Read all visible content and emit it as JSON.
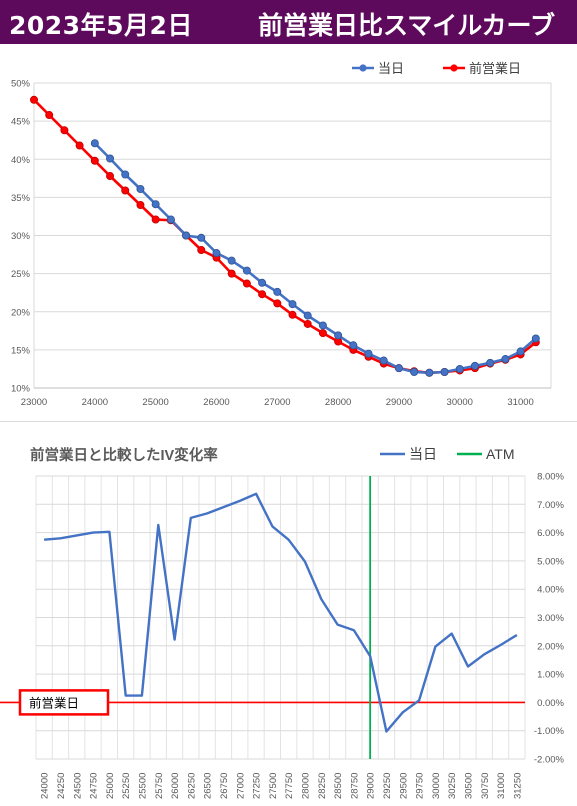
{
  "header": {
    "date": "2023年5月2日",
    "title": "前営業日比スマイルカーブ"
  },
  "colors": {
    "header_bg": "#5e0a5c",
    "today": "#4472c4",
    "prev": "#ff0000",
    "atm": "#00b050",
    "diff": "#4472c4",
    "baseline": "#ff0000"
  },
  "chart_data": [
    {
      "type": "line",
      "title": "",
      "legend": [
        "当日",
        "前営業日"
      ],
      "legend_position": "top-right",
      "xlim": [
        23000,
        31500
      ],
      "xticks": [
        "23000",
        "24000",
        "25000",
        "26000",
        "27000",
        "28000",
        "29000",
        "30000",
        "31000"
      ],
      "ylim": [
        0.1,
        0.5
      ],
      "yticks": [
        "10%",
        "15%",
        "20%",
        "25%",
        "30%",
        "35%",
        "40%",
        "45%",
        "50%"
      ],
      "grid": true,
      "series": [
        {
          "name": "当日",
          "x": [
            24000,
            24250,
            24500,
            24750,
            25000,
            25250,
            25500,
            25750,
            26000,
            26250,
            26500,
            26750,
            27000,
            27250,
            27500,
            27750,
            28000,
            28250,
            28500,
            28750,
            29000,
            29250,
            29500,
            29750,
            30000,
            30250,
            30500,
            30750,
            31000,
            31250
          ],
          "y": [
            0.421,
            0.401,
            0.38,
            0.361,
            0.341,
            0.321,
            0.3,
            0.297,
            0.277,
            0.267,
            0.254,
            0.238,
            0.226,
            0.21,
            0.195,
            0.182,
            0.169,
            0.156,
            0.145,
            0.136,
            0.126,
            0.121,
            0.12,
            0.121,
            0.125,
            0.129,
            0.133,
            0.138,
            0.148,
            0.165
          ]
        },
        {
          "name": "前営業日",
          "x": [
            23000,
            23250,
            23500,
            23750,
            24000,
            24250,
            24500,
            24750,
            25000,
            25250,
            25500,
            25750,
            26000,
            26250,
            26500,
            26750,
            27000,
            27250,
            27500,
            27750,
            28000,
            28250,
            28500,
            28750,
            29000,
            29250,
            29500,
            29750,
            30000,
            30250,
            30500,
            30750,
            31000,
            31250
          ],
          "y": [
            0.478,
            0.458,
            0.438,
            0.418,
            0.398,
            0.378,
            0.359,
            0.34,
            0.321,
            0.32,
            0.3,
            0.281,
            0.271,
            0.25,
            0.237,
            0.223,
            0.211,
            0.196,
            0.184,
            0.172,
            0.161,
            0.15,
            0.141,
            0.132,
            0.126,
            0.122,
            0.12,
            0.121,
            0.123,
            0.126,
            0.132,
            0.137,
            0.144,
            0.16
          ]
        }
      ]
    },
    {
      "type": "line",
      "title": "前営業日と比較したIV変化率",
      "legend": [
        "当日",
        "ATM"
      ],
      "legend_position": "top-right",
      "categories": [
        "24000",
        "24250",
        "24500",
        "24750",
        "25000",
        "25250",
        "25500",
        "25750",
        "26000",
        "26250",
        "26500",
        "26750",
        "27000",
        "27250",
        "27500",
        "27750",
        "28000",
        "28250",
        "28500",
        "28750",
        "29000",
        "29250",
        "29500",
        "29750",
        "30000",
        "30250",
        "30500",
        "30750",
        "31000",
        "31250"
      ],
      "ylim": [
        -0.02,
        0.08
      ],
      "yticks": [
        "8.00%",
        "7.00%",
        "6.00%",
        "5.00%",
        "4.00%",
        "3.00%",
        "2.00%",
        "1.00%",
        "0.00%",
        "-1.00%",
        "-2.00%"
      ],
      "grid": true,
      "atm": "29000",
      "baseline_label": "前営業日",
      "series": [
        {
          "name": "当日",
          "values": [
            0.0575,
            0.058,
            0.059,
            0.06,
            0.0603,
            0.0024,
            0.0024,
            0.0627,
            0.0222,
            0.0652,
            0.0668,
            0.069,
            0.0712,
            0.0737,
            0.0622,
            0.0575,
            0.0498,
            0.0365,
            0.0275,
            0.0255,
            0.0163,
            -0.0103,
            -0.0035,
            0.0007,
            0.0197,
            0.0243,
            0.0127,
            0.017,
            0.0203,
            0.0238
          ]
        }
      ]
    }
  ]
}
